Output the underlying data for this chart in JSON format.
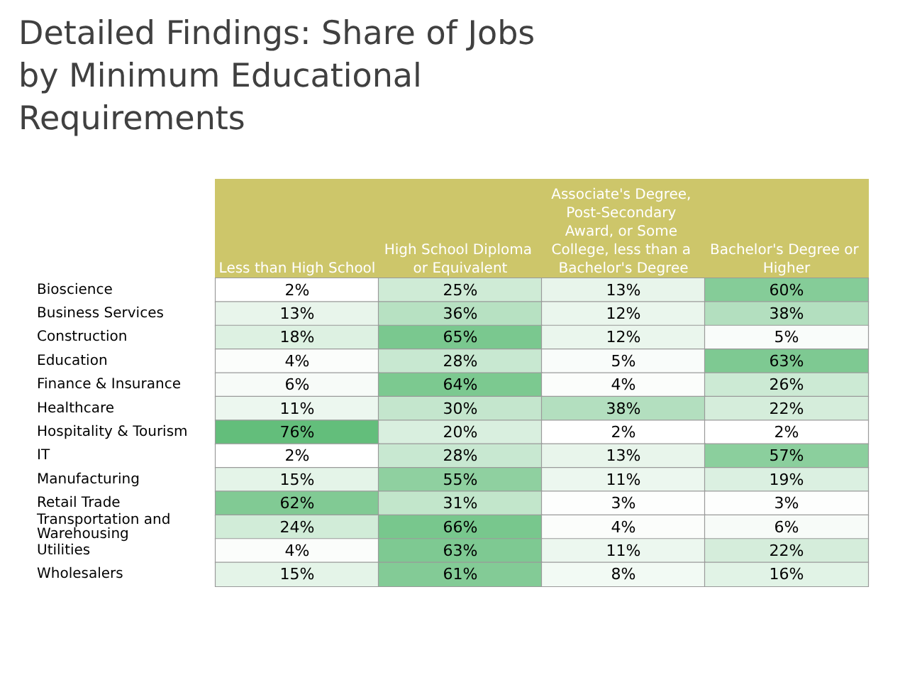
{
  "chart_data": {
    "type": "heatmap",
    "title": "Detailed Findings: Share of Jobs by Minimum Educational Requirements",
    "categories": [
      "Less than High School",
      "High School Diploma or Equivalent",
      "Associate's Degree, Post-Secondary Award, or Some College, less than a Bachelor's Degree",
      "Bachelor's Degree or Higher"
    ],
    "y_categories": [
      "Bioscience",
      "Business Services",
      "Construction",
      "Education",
      "Finance & Insurance",
      "Healthcare",
      "Hospitality & Tourism",
      "IT",
      "Manufacturing",
      "Retail Trade",
      "Transportation and Warehousing",
      "Utilities",
      "Wholesalers"
    ],
    "cells": [
      [
        2,
        25,
        13,
        60
      ],
      [
        13,
        36,
        12,
        38
      ],
      [
        18,
        65,
        12,
        5
      ],
      [
        4,
        28,
        5,
        63
      ],
      [
        6,
        64,
        4,
        26
      ],
      [
        11,
        30,
        38,
        22
      ],
      [
        76,
        20,
        2,
        2
      ],
      [
        2,
        28,
        13,
        57
      ],
      [
        15,
        55,
        11,
        19
      ],
      [
        62,
        31,
        3,
        3
      ],
      [
        24,
        66,
        4,
        6
      ],
      [
        4,
        63,
        11,
        22
      ],
      [
        15,
        61,
        8,
        16
      ]
    ],
    "cell_labels": [
      [
        "2%",
        "25%",
        "13%",
        "60%"
      ],
      [
        "13%",
        "36%",
        "12%",
        "38%"
      ],
      [
        "18%",
        "65%",
        "12%",
        "5%"
      ],
      [
        "4%",
        "28%",
        "5%",
        "63%"
      ],
      [
        "6%",
        "64%",
        "4%",
        "26%"
      ],
      [
        "11%",
        "30%",
        "38%",
        "22%"
      ],
      [
        "76%",
        "20%",
        "2%",
        "2%"
      ],
      [
        "2%",
        "28%",
        "13%",
        "57%"
      ],
      [
        "15%",
        "55%",
        "11%",
        "19%"
      ],
      [
        "62%",
        "31%",
        "3%",
        "3%"
      ],
      [
        "24%",
        "66%",
        "4%",
        "6%"
      ],
      [
        "4%",
        "63%",
        "11%",
        "22%"
      ],
      [
        "15%",
        "61%",
        "8%",
        "16%"
      ]
    ]
  }
}
